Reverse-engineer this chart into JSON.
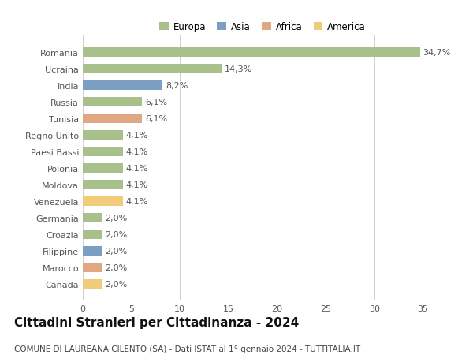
{
  "countries": [
    "Romania",
    "Ucraina",
    "India",
    "Russia",
    "Tunisia",
    "Regno Unito",
    "Paesi Bassi",
    "Polonia",
    "Moldova",
    "Venezuela",
    "Germania",
    "Croazia",
    "Filippine",
    "Marocco",
    "Canada"
  ],
  "values": [
    34.7,
    14.3,
    8.2,
    6.1,
    6.1,
    4.1,
    4.1,
    4.1,
    4.1,
    4.1,
    2.0,
    2.0,
    2.0,
    2.0,
    2.0
  ],
  "labels": [
    "34,7%",
    "14,3%",
    "8,2%",
    "6,1%",
    "6,1%",
    "4,1%",
    "4,1%",
    "4,1%",
    "4,1%",
    "4,1%",
    "2,0%",
    "2,0%",
    "2,0%",
    "2,0%",
    "2,0%"
  ],
  "continents": [
    "Europa",
    "Europa",
    "Asia",
    "Europa",
    "Africa",
    "Europa",
    "Europa",
    "Europa",
    "Europa",
    "America",
    "Europa",
    "Europa",
    "Asia",
    "Africa",
    "America"
  ],
  "continent_colors": {
    "Europa": "#a8c08a",
    "Asia": "#7a9fc2",
    "Africa": "#e0a882",
    "America": "#f0cc7a"
  },
  "legend_order": [
    "Europa",
    "Asia",
    "Africa",
    "America"
  ],
  "title": "Cittadini Stranieri per Cittadinanza - 2024",
  "subtitle": "COMUNE DI LAUREANA CILENTO (SA) - Dati ISTAT al 1° gennaio 2024 - TUTTITALIA.IT",
  "xlim": [
    0,
    37
  ],
  "xticks": [
    0,
    5,
    10,
    15,
    20,
    25,
    30,
    35
  ],
  "bar_background": "#ffffff",
  "grid_color": "#d0d0d0",
  "label_fontsize": 8.0,
  "tick_fontsize": 8.0,
  "title_fontsize": 11,
  "subtitle_fontsize": 7.5
}
